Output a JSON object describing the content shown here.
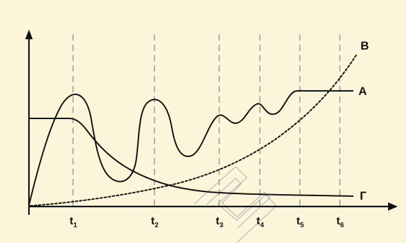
{
  "chart_data": {
    "type": "line",
    "title": "",
    "xlabel": "",
    "ylabel": "",
    "grid": "dashed vertical lines at t1–t6",
    "colors": {
      "background": "#fdf5d9",
      "axes": "#111111",
      "curves": "#111111",
      "gridlines": "#b0b0b0",
      "watermark": "#bdbdbd"
    },
    "x_ticks": [
      {
        "main": "t",
        "sub": "1"
      },
      {
        "main": "t",
        "sub": "2"
      },
      {
        "main": "t",
        "sub": "3"
      },
      {
        "main": "t",
        "sub": "4"
      },
      {
        "main": "t",
        "sub": "5"
      },
      {
        "main": "t",
        "sub": "6"
      }
    ],
    "series": [
      {
        "name": "A",
        "style": "solid",
        "shape": "rises quickly to a peak at t1, dips below 2, oscillates with decreasing amplitude between t2 and t5, then stays constant after t5"
      },
      {
        "name": "B",
        "style": "dotted",
        "shape": "starts near zero and increases exponentially"
      },
      {
        "name": "Г",
        "style": "solid",
        "shape": "starts at a high constant level until about t1, then decays and levels off near the bottom"
      }
    ]
  }
}
